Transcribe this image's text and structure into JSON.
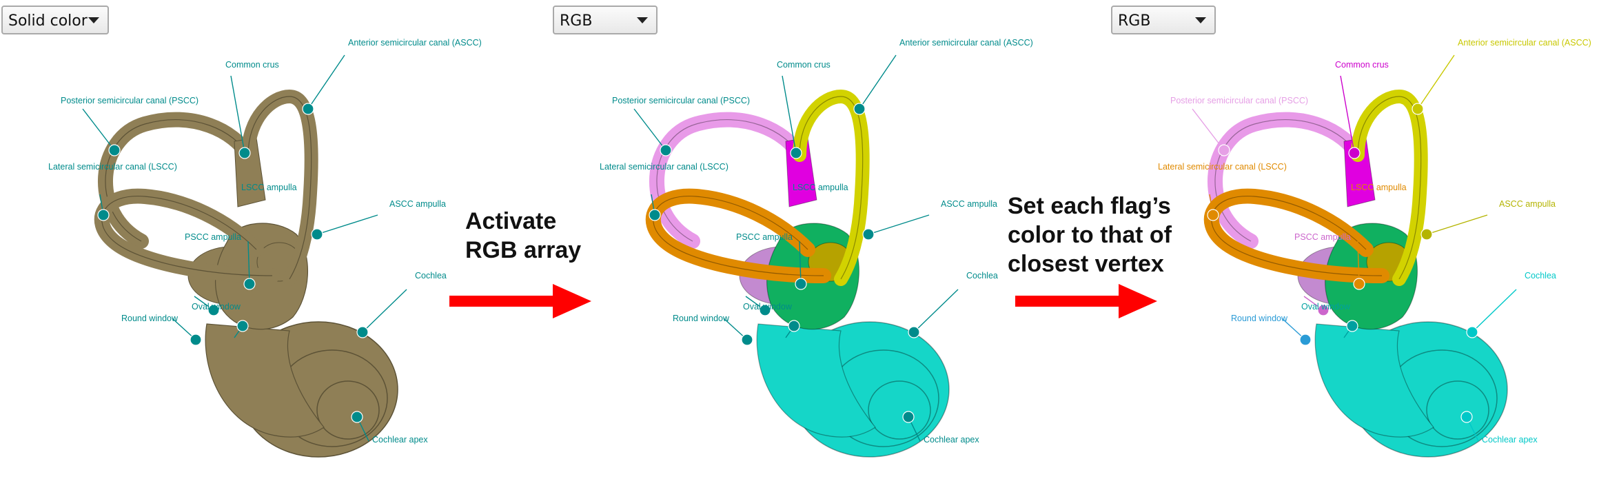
{
  "panels": [
    {
      "mode": "Solid color",
      "scheme": "solid",
      "flags": [
        {
          "label": "Anterior semicircular canal (ASCC)",
          "color": "#008b8b"
        },
        {
          "label": "Common crus",
          "color": "#008b8b"
        },
        {
          "label": "Posterior semicircular canal (PSCC)",
          "color": "#008b8b"
        },
        {
          "label": "Lateral semicircular canal (LSCC)",
          "color": "#008b8b"
        },
        {
          "label": "LSCC ampulla",
          "color": "#008b8b"
        },
        {
          "label": "ASCC ampulla",
          "color": "#008b8b"
        },
        {
          "label": "PSCC ampulla",
          "color": "#008b8b"
        },
        {
          "label": "Oval window",
          "color": "#008b8b"
        },
        {
          "label": "Round window",
          "color": "#008b8b"
        },
        {
          "label": "Cochlea",
          "color": "#008b8b"
        },
        {
          "label": "Cochlear apex",
          "color": "#008b8b"
        }
      ]
    },
    {
      "mode": "RGB",
      "scheme": "rgb",
      "flags": [
        {
          "label": "Anterior semicircular canal (ASCC)",
          "color": "#008b8b"
        },
        {
          "label": "Common crus",
          "color": "#008b8b"
        },
        {
          "label": "Posterior semicircular canal (PSCC)",
          "color": "#008b8b"
        },
        {
          "label": "Lateral semicircular canal (LSCC)",
          "color": "#008b8b"
        },
        {
          "label": "LSCC ampulla",
          "color": "#008b8b"
        },
        {
          "label": "ASCC ampulla",
          "color": "#008b8b"
        },
        {
          "label": "PSCC ampulla",
          "color": "#008b8b"
        },
        {
          "label": "Oval window",
          "color": "#008b8b"
        },
        {
          "label": "Round window",
          "color": "#008b8b"
        },
        {
          "label": "Cochlea",
          "color": "#008b8b"
        },
        {
          "label": "Cochlear apex",
          "color": "#008b8b"
        }
      ]
    },
    {
      "mode": "RGB",
      "scheme": "rgb",
      "flags": [
        {
          "label": "Anterior semicircular canal (ASCC)",
          "color": "#c8c800"
        },
        {
          "label": "Common crus",
          "color": "#cc00cc"
        },
        {
          "label": "Posterior semicircular canal (PSCC)",
          "color": "#e6a0e6"
        },
        {
          "label": "Lateral semicircular canal (LSCC)",
          "color": "#e08a00"
        },
        {
          "label": "LSCC ampulla",
          "color": "#e08a00"
        },
        {
          "label": "ASCC ampulla",
          "color": "#b4b400"
        },
        {
          "label": "PSCC ampulla",
          "color": "#cc66cc"
        },
        {
          "label": "Oval window",
          "color": "#00a0a0"
        },
        {
          "label": "Round window",
          "color": "#2a9bd6"
        },
        {
          "label": "Cochlea",
          "color": "#00c8c8"
        },
        {
          "label": "Cochlear apex",
          "color": "#00c8c8"
        }
      ]
    }
  ],
  "captions": {
    "first": [
      "Activate",
      "RGB array"
    ],
    "second": [
      "Set each flag’s",
      "color to that of",
      "closest vertex"
    ]
  },
  "colors": {
    "arrow": "#ff0000",
    "solid_body": "#8f7f56",
    "rgb_canal_pscc": "#e89ae8",
    "rgb_canal_ascc": "#d2d200",
    "rgb_canal_lscc": "#e08a00",
    "rgb_common_crus": "#e000e0",
    "rgb_vestibule": "#10b060",
    "rgb_cochlea": "#15d6c8"
  }
}
